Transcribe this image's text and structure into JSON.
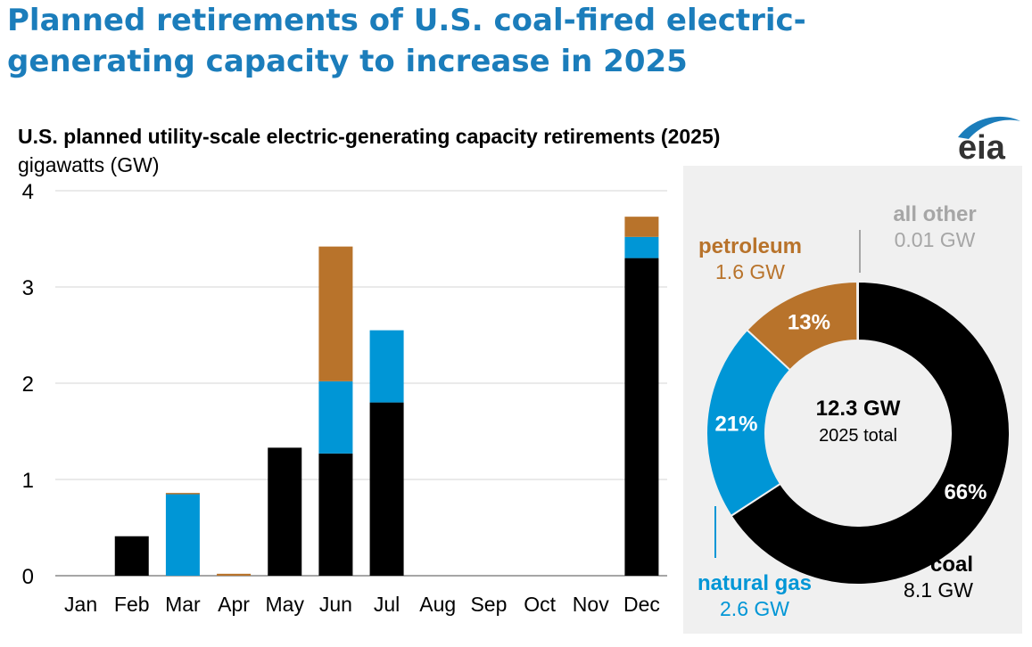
{
  "headline": "Planned retirements of U.S. coal-fired electric-generating capacity to increase in 2025",
  "source_logo": "eia",
  "colors": {
    "headline": "#1b7dbb",
    "coal": "#000000",
    "natural_gas": "#0096d6",
    "petroleum": "#b8732b",
    "all_other": "#a6a6a6",
    "panel": "#f0f0f0"
  },
  "chart_data": [
    {
      "type": "bar",
      "stacked": true,
      "title": "U.S. planned utility-scale electric-generating capacity retirements (2025)",
      "ylabel": "gigawatts (GW)",
      "ylim": [
        0,
        4
      ],
      "yticks": [
        0,
        1,
        2,
        3,
        4
      ],
      "grid": true,
      "categories": [
        "Jan",
        "Feb",
        "Mar",
        "Apr",
        "May",
        "Jun",
        "Jul",
        "Aug",
        "Sep",
        "Oct",
        "Nov",
        "Dec"
      ],
      "series": [
        {
          "name": "coal",
          "color": "#000000",
          "values": [
            0,
            0.41,
            0,
            0,
            1.33,
            1.27,
            1.8,
            0,
            0,
            0,
            0,
            3.3
          ]
        },
        {
          "name": "natural gas",
          "color": "#0096d6",
          "values": [
            0,
            0,
            0.85,
            0,
            0,
            0.75,
            0.75,
            0,
            0,
            0,
            0,
            0.22
          ]
        },
        {
          "name": "petroleum",
          "color": "#b8732b",
          "values": [
            0,
            0,
            0.01,
            0.02,
            0,
            1.4,
            0,
            0,
            0,
            0,
            0,
            0.21
          ]
        }
      ]
    },
    {
      "type": "pie",
      "donut": true,
      "center_value": "12.3 GW",
      "center_label": "2025 total",
      "slices": [
        {
          "name": "coal",
          "value_label": "8.1 GW",
          "value": 8.1,
          "percent": 66,
          "percent_label": "66%",
          "color": "#000000"
        },
        {
          "name": "natural gas",
          "value_label": "2.6 GW",
          "value": 2.6,
          "percent": 21,
          "percent_label": "21%",
          "color": "#0096d6"
        },
        {
          "name": "petroleum",
          "value_label": "1.6 GW",
          "value": 1.6,
          "percent": 13,
          "percent_label": "13%",
          "color": "#b8732b"
        },
        {
          "name": "all other",
          "value_label": "0.01 GW",
          "value": 0.01,
          "percent": 0.1,
          "percent_label": "",
          "color": "#a6a6a6"
        }
      ]
    }
  ]
}
